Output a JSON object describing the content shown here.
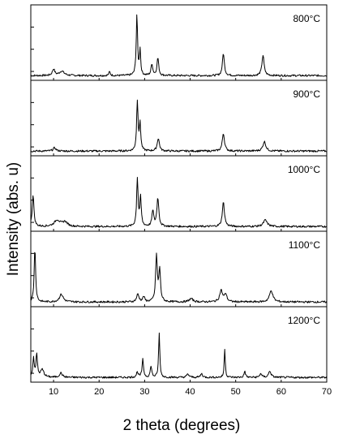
{
  "chart_data": {
    "type": "line",
    "layout": "stacked-panels",
    "xlabel": "2 theta (degrees)",
    "ylabel": "Intensity (abs. u)",
    "xlim": [
      5,
      70
    ],
    "xticks": [
      10,
      20,
      30,
      40,
      50,
      60,
      70
    ],
    "xticklabels": [
      "10",
      "20",
      "30",
      "40",
      "50",
      "60",
      "70"
    ],
    "yticklabels": "none",
    "grid": false,
    "legend": "none",
    "series": [
      {
        "panel_label": "800°C",
        "baseline": 0.1,
        "peaks": [
          {
            "x": 10.0,
            "height": 0.1,
            "width": 0.5
          },
          {
            "x": 11.8,
            "height": 0.07,
            "width": 1.0
          },
          {
            "x": 22.3,
            "height": 0.06,
            "width": 0.3
          },
          {
            "x": 28.3,
            "height": 0.95,
            "width": 0.28
          },
          {
            "x": 29.0,
            "height": 0.4,
            "width": 0.25
          },
          {
            "x": 31.6,
            "height": 0.18,
            "width": 0.35
          },
          {
            "x": 32.9,
            "height": 0.28,
            "width": 0.35
          },
          {
            "x": 47.3,
            "height": 0.35,
            "width": 0.4
          },
          {
            "x": 56.0,
            "height": 0.32,
            "width": 0.45
          }
        ]
      },
      {
        "panel_label": "900°C",
        "baseline": 0.1,
        "peaks": [
          {
            "x": 10.2,
            "height": 0.05,
            "width": 0.6
          },
          {
            "x": 28.4,
            "height": 0.78,
            "width": 0.3
          },
          {
            "x": 29.0,
            "height": 0.42,
            "width": 0.28
          },
          {
            "x": 33.0,
            "height": 0.2,
            "width": 0.45
          },
          {
            "x": 47.3,
            "height": 0.28,
            "width": 0.45
          },
          {
            "x": 56.3,
            "height": 0.15,
            "width": 0.6
          }
        ]
      },
      {
        "panel_label": "1000°C",
        "baseline": 0.1,
        "peaks": [
          {
            "x": 5.5,
            "height": 0.5,
            "width": 0.35
          },
          {
            "x": 10.8,
            "height": 0.1,
            "width": 1.2
          },
          {
            "x": 12.5,
            "height": 0.07,
            "width": 1.0
          },
          {
            "x": 28.4,
            "height": 0.75,
            "width": 0.3
          },
          {
            "x": 29.1,
            "height": 0.45,
            "width": 0.3
          },
          {
            "x": 31.8,
            "height": 0.25,
            "width": 0.35
          },
          {
            "x": 32.9,
            "height": 0.45,
            "width": 0.4
          },
          {
            "x": 47.3,
            "height": 0.38,
            "width": 0.45
          },
          {
            "x": 56.5,
            "height": 0.1,
            "width": 0.8
          }
        ]
      },
      {
        "panel_label": "1100°C",
        "baseline": 0.1,
        "peaks": [
          {
            "x": 5.9,
            "height": 0.85,
            "width": 0.3
          },
          {
            "x": 11.7,
            "height": 0.12,
            "width": 0.8
          },
          {
            "x": 28.5,
            "height": 0.12,
            "width": 0.5
          },
          {
            "x": 29.8,
            "height": 0.08,
            "width": 0.4
          },
          {
            "x": 32.6,
            "height": 0.72,
            "width": 0.35
          },
          {
            "x": 33.3,
            "height": 0.5,
            "width": 0.35
          },
          {
            "x": 40.2,
            "height": 0.05,
            "width": 0.8
          },
          {
            "x": 46.8,
            "height": 0.18,
            "width": 0.6
          },
          {
            "x": 47.8,
            "height": 0.12,
            "width": 0.5
          },
          {
            "x": 57.8,
            "height": 0.18,
            "width": 0.7
          }
        ]
      },
      {
        "panel_label": "1200°C",
        "baseline": 0.1,
        "peaks": [
          {
            "x": 5.6,
            "height": 0.3,
            "width": 0.3
          },
          {
            "x": 6.3,
            "height": 0.35,
            "width": 0.3
          },
          {
            "x": 7.5,
            "height": 0.12,
            "width": 0.7
          },
          {
            "x": 11.6,
            "height": 0.07,
            "width": 0.6
          },
          {
            "x": 28.4,
            "height": 0.08,
            "width": 0.4
          },
          {
            "x": 29.6,
            "height": 0.28,
            "width": 0.3
          },
          {
            "x": 31.4,
            "height": 0.18,
            "width": 0.3
          },
          {
            "x": 33.2,
            "height": 0.7,
            "width": 0.25
          },
          {
            "x": 39.5,
            "height": 0.05,
            "width": 0.5
          },
          {
            "x": 42.5,
            "height": 0.06,
            "width": 0.4
          },
          {
            "x": 47.6,
            "height": 0.45,
            "width": 0.22
          },
          {
            "x": 52.0,
            "height": 0.1,
            "width": 0.3
          },
          {
            "x": 55.5,
            "height": 0.06,
            "width": 0.4
          },
          {
            "x": 57.5,
            "height": 0.1,
            "width": 0.5
          }
        ]
      }
    ]
  }
}
